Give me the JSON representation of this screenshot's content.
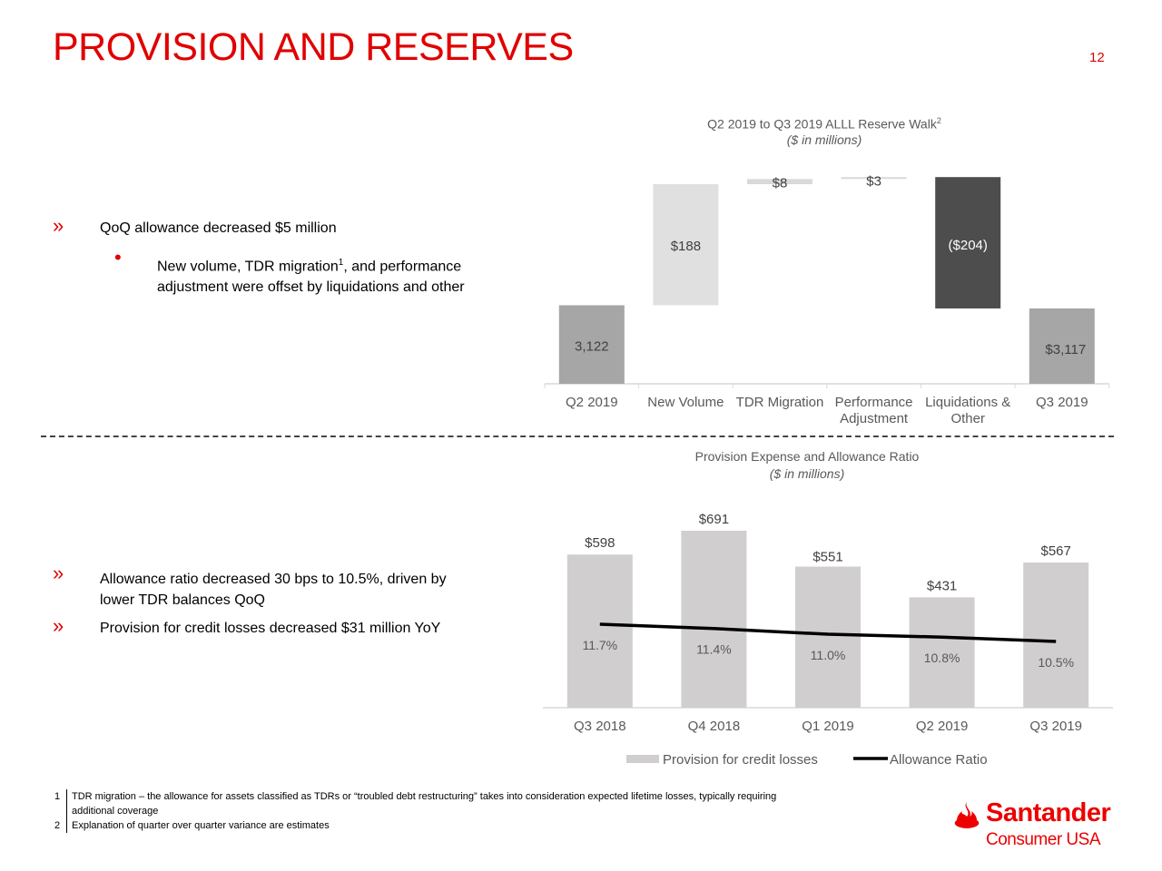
{
  "header": {
    "title": "PROVISION AND RESERVES",
    "page_number": "12"
  },
  "left_bullets": {
    "top": {
      "main": "QoQ allowance decreased $5 million",
      "sub_a": "New volume, TDR migration",
      "sub_sup": "1",
      "sub_b": ", and performance",
      "sub_line2": "adjustment were offset by liquidations and other"
    },
    "bottom": [
      {
        "line1": "Allowance ratio decreased 30 bps to 10.5%, driven by",
        "line2": "lower TDR balances QoQ"
      },
      {
        "line1": "Provision for credit losses decreased $31 million YoY"
      }
    ]
  },
  "chart_data": [
    {
      "type": "waterfall",
      "title": "Q2 2019 to Q3 2019 ALLL Reserve Walk",
      "title_sup": "2",
      "subtitle": "($ in millions)",
      "categories": [
        "Q2 2019",
        "New Volume",
        "TDR Migration",
        "Performance Adjustment",
        "Liquidations & Other",
        "Q3 2019"
      ],
      "category_lines": [
        [
          "Q2 2019"
        ],
        [
          "New Volume"
        ],
        [
          "TDR Migration"
        ],
        [
          "Performance",
          "Adjustment"
        ],
        [
          "Liquidations &",
          "Other"
        ],
        [
          "Q3 2019"
        ]
      ],
      "values": [
        3122,
        188,
        8,
        3,
        -204,
        3117
      ],
      "kinds": [
        "total",
        "delta",
        "delta",
        "delta",
        "delta",
        "total"
      ],
      "data_labels": [
        "3,122",
        "$188",
        "$8",
        "$3",
        "($204)",
        "$3,117"
      ],
      "colors": [
        "#a6a6a6",
        "#e0e0e0",
        "#d9d9d9",
        "#d9d9d9",
        "#4d4d4d",
        "#a6a6a6"
      ],
      "ylim": [
        3000,
        3330
      ]
    },
    {
      "type": "bar+line",
      "title": "Provision Expense and Allowance Ratio",
      "subtitle": "($ in millions)",
      "categories": [
        "Q3 2018",
        "Q4 2018",
        "Q1 2019",
        "Q2 2019",
        "Q3 2019"
      ],
      "series": [
        {
          "name": "Provision for credit losses",
          "type": "bar",
          "values": [
            598,
            691,
            551,
            431,
            567
          ],
          "labels": [
            "$598",
            "$691",
            "$551",
            "$431",
            "$567"
          ],
          "color": "#d0cece"
        },
        {
          "name": "Allowance Ratio",
          "type": "line",
          "values": [
            11.7,
            11.4,
            11.0,
            10.8,
            10.5
          ],
          "labels": [
            "11.7%",
            "11.4%",
            "11.0%",
            "10.8%",
            "10.5%"
          ],
          "color": "#000000"
        }
      ],
      "legend": "bottom"
    }
  ],
  "footnotes": [
    {
      "num": "1",
      "line1": "TDR migration – the allowance for assets classified as TDRs or “troubled debt restructuring” takes into consideration expected lifetime losses, typically requiring",
      "line2": "additional coverage"
    },
    {
      "num": "2",
      "line1": "Explanation of quarter over quarter variance are estimates"
    }
  ],
  "logo": {
    "brand": "Santander",
    "sub": "Consumer USA",
    "color": "#ec0000"
  }
}
